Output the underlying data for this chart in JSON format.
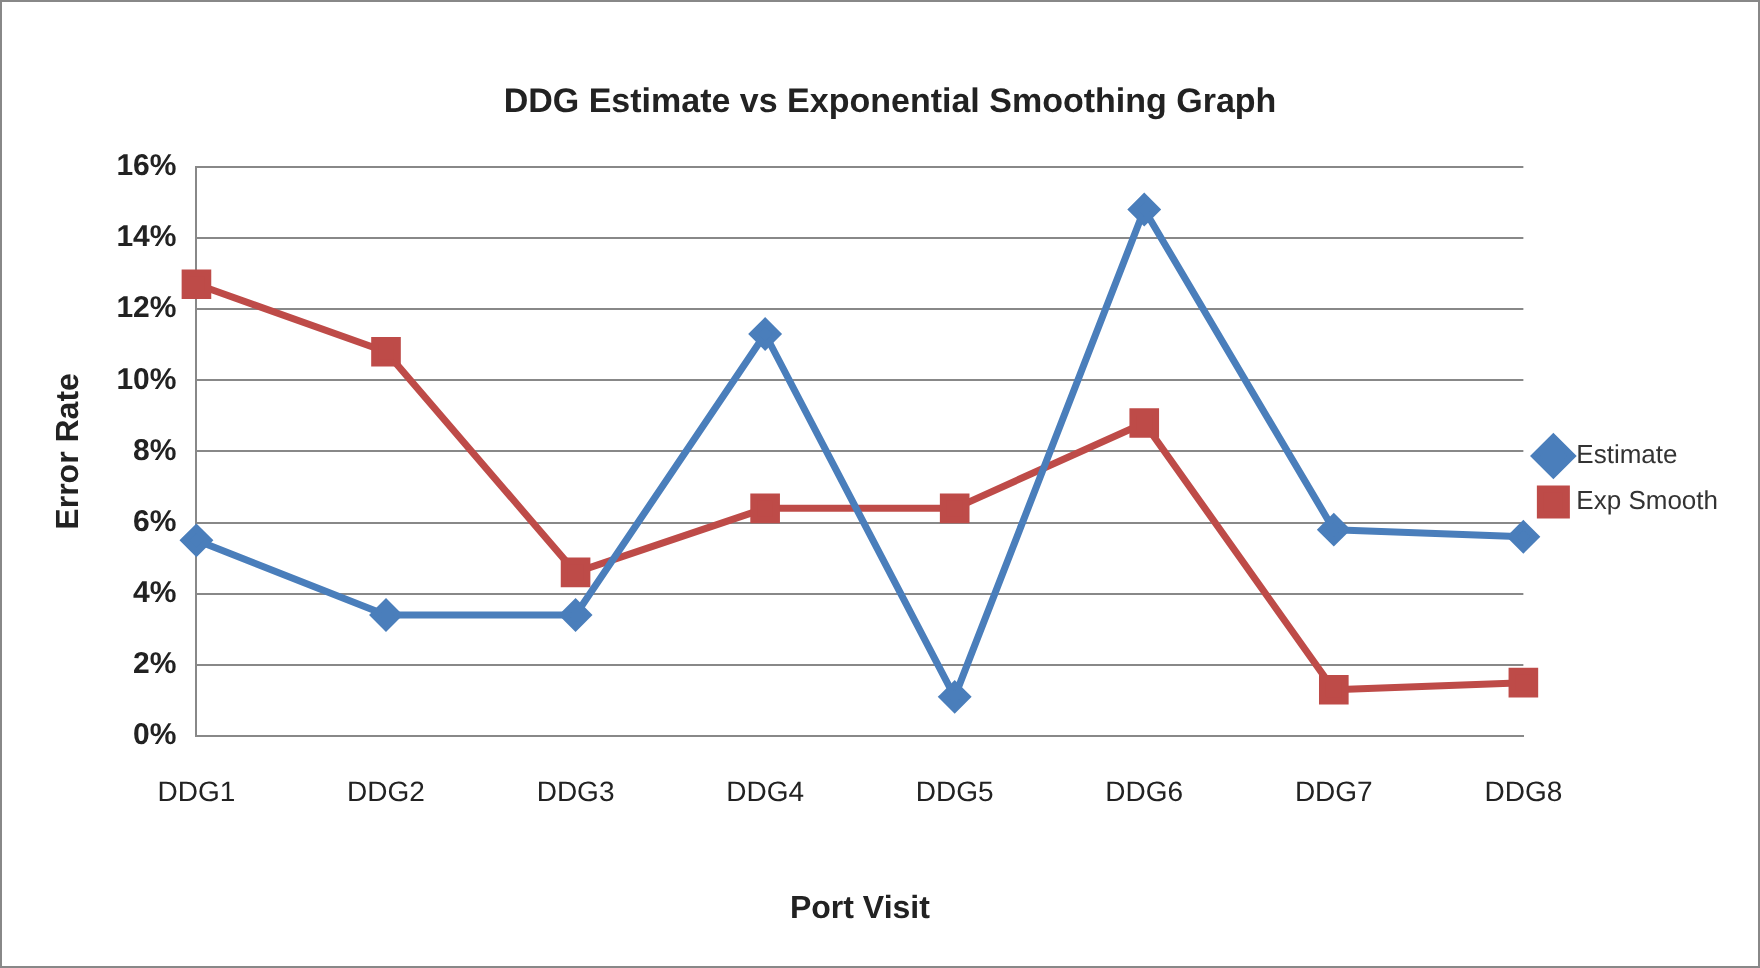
{
  "chart_data": {
    "type": "line",
    "title": "DDG Estimate vs Exponential Smoothing Graph",
    "xlabel": "Port Visit",
    "ylabel": "Error Rate",
    "categories": [
      "DDG1",
      "DDG2",
      "DDG3",
      "DDG4",
      "DDG5",
      "DDG6",
      "DDG7",
      "DDG8"
    ],
    "series": [
      {
        "name": "Estimate",
        "color": "#4a7ebb",
        "marker": "diamond",
        "values": [
          5.5,
          3.4,
          3.4,
          11.3,
          1.1,
          14.8,
          5.8,
          5.6
        ]
      },
      {
        "name": "Exp Smooth",
        "color": "#be4b48",
        "marker": "square",
        "values": [
          12.7,
          10.8,
          4.6,
          6.4,
          6.4,
          8.8,
          1.3,
          1.5
        ]
      }
    ],
    "ylim": [
      0,
      16
    ],
    "yticks": [
      {
        "value": 0,
        "label": "0%"
      },
      {
        "value": 2,
        "label": "2%"
      },
      {
        "value": 4,
        "label": "4%"
      },
      {
        "value": 6,
        "label": "6%"
      },
      {
        "value": 8,
        "label": "8%"
      },
      {
        "value": 10,
        "label": "10%"
      },
      {
        "value": 12,
        "label": "12%"
      },
      {
        "value": 14,
        "label": "14%"
      },
      {
        "value": 16,
        "label": "16%"
      }
    ],
    "grid": "y",
    "legend": "right"
  }
}
